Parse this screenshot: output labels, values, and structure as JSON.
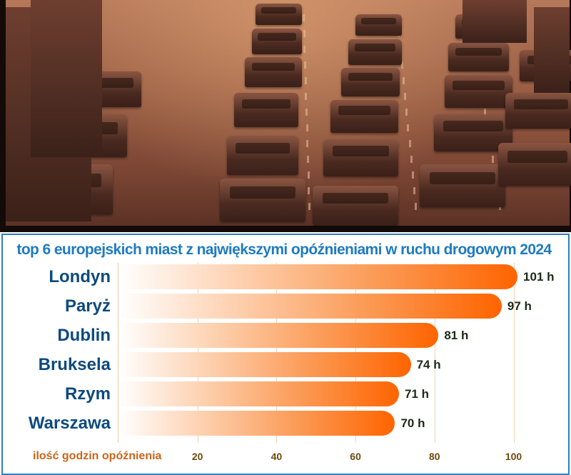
{
  "photo": {
    "description": "sepia photo of congested multi-lane highway traffic with cars and trucks",
    "icon": "traffic-photo"
  },
  "chart_data": {
    "type": "bar",
    "orientation": "horizontal",
    "title": "top 6 europejskich miast z największymi opóźnieniami w ruchu drogowym 2024",
    "xlabel": "ilość godzin opóźnienia",
    "ylabel": "",
    "categories": [
      "Londyn",
      "Paryż",
      "Dublin",
      "Bruksela",
      "Rzym",
      "Warszawa"
    ],
    "values": [
      101,
      97,
      81,
      74,
      71,
      70
    ],
    "value_labels": [
      "101 h",
      "97 h",
      "81 h",
      "74 h",
      "71 h",
      "70 h"
    ],
    "xticks": [
      20,
      40,
      60,
      80,
      100
    ],
    "xlim": [
      0,
      105
    ],
    "grid": "vertical",
    "legend": null,
    "colors": {
      "bar_start": "#ffffff",
      "bar_end": "#ff6400",
      "title": "#1f7bc0",
      "category_labels": "#0d4a7e",
      "axis_title": "#c8651a",
      "ticks": "#6b4a10",
      "border": "#2f7fc1"
    }
  },
  "labels": {
    "title": "top 6 europejskich miast z największymi opóźnieniami w ruchu drogowym 2024",
    "axis_title": "ilość godzin opóźnienia",
    "ticks": [
      "20",
      "40",
      "60",
      "80",
      "100"
    ]
  },
  "rows": [
    {
      "city": "Londyn",
      "value": "101 h"
    },
    {
      "city": "Paryż",
      "value": "97 h"
    },
    {
      "city": "Dublin",
      "value": "81 h"
    },
    {
      "city": "Bruksela",
      "value": "74 h"
    },
    {
      "city": "Rzym",
      "value": "71 h"
    },
    {
      "city": "Warszawa",
      "value": "70 h"
    }
  ]
}
